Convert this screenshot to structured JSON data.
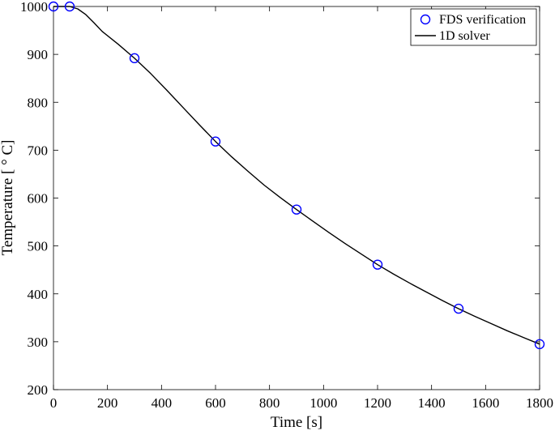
{
  "chart_data": {
    "type": "line",
    "xlabel": "Time [s]",
    "ylabel": "Temperature [$^\\circ$C]",
    "ylabel_display": "Temperature [ ° C]",
    "xlim": [
      0,
      1800
    ],
    "ylim": [
      200,
      1000
    ],
    "xticks": [
      0,
      200,
      400,
      600,
      800,
      1000,
      1200,
      1400,
      1600,
      1800
    ],
    "yticks": [
      200,
      300,
      400,
      500,
      600,
      700,
      800,
      900,
      1000
    ],
    "grid": false,
    "legend_position": "top-right",
    "series": [
      {
        "name": "FDS verification",
        "style": "markers",
        "marker": "circle",
        "color": "#0000ff",
        "x": [
          0,
          60,
          300,
          600,
          900,
          1200,
          1500,
          1800
        ],
        "y": [
          1000,
          1000,
          892,
          718,
          576,
          461,
          369,
          295
        ]
      },
      {
        "name": "1D solver",
        "style": "line",
        "color": "#000000",
        "x": [
          0,
          30,
          60,
          90,
          120,
          150,
          180,
          240,
          300,
          360,
          420,
          480,
          540,
          600,
          660,
          720,
          780,
          840,
          900,
          960,
          1020,
          1080,
          1140,
          1200,
          1260,
          1320,
          1380,
          1440,
          1500,
          1560,
          1620,
          1680,
          1740,
          1800
        ],
        "y": [
          1000,
          1000,
          1000,
          995,
          983,
          966,
          948,
          921,
          892,
          860,
          825,
          789,
          753,
          718,
          686,
          656,
          627,
          601,
          576,
          552,
          528,
          505,
          483,
          461,
          441,
          422,
          404,
          386,
          369,
          353,
          338,
          323,
          309,
          295
        ]
      }
    ]
  }
}
